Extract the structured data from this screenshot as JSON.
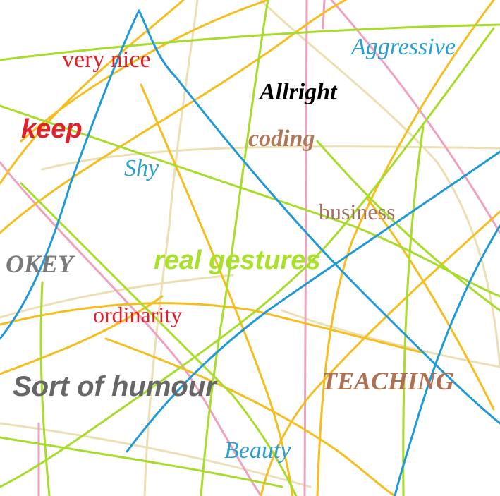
{
  "words": {
    "very_nice": {
      "text": "very nice",
      "color": "#e0202a"
    },
    "aggressive": {
      "text": "Aggressive",
      "color": "#2aa0d0"
    },
    "allright": {
      "text": "Allright",
      "color": "#000000"
    },
    "keep": {
      "text": "keep",
      "color": "#e0202a"
    },
    "coding": {
      "text": "coding",
      "color": "#b07a5a"
    },
    "shy": {
      "text": "Shy",
      "color": "#2aa0d0"
    },
    "business": {
      "text": "business",
      "color": "#a07060"
    },
    "okey": {
      "text": "OKEY",
      "color": "#7a7a7a"
    },
    "real_gestures": {
      "text": "real gestures",
      "color": "#a8e02a"
    },
    "ordinarity": {
      "text": "ordinarity",
      "color": "#e0202a"
    },
    "sort_of_humour": {
      "text": "Sort of humour",
      "color": "#666666"
    },
    "teaching": {
      "text": "TEACHING",
      "color": "#b07050"
    },
    "beauty": {
      "text": "Beauty",
      "color": "#2aa0d0"
    }
  },
  "stroke_colors": {
    "blue": "#1f9ad6",
    "lime": "#a8dc2a",
    "orange": "#f5be1e",
    "beige": "#ecdfb4",
    "pink": "#f0a0c0"
  }
}
